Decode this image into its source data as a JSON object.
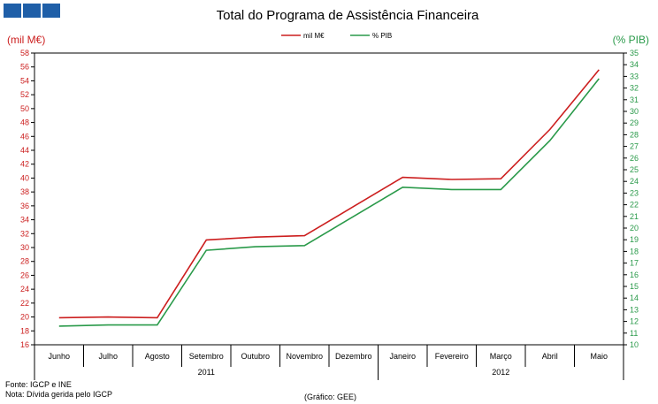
{
  "chart_data": {
    "type": "line",
    "title": "Total do Programa de Assistência Financeira",
    "ylabel_left": "(mil M€)",
    "ylabel_right": "(% PIB)",
    "ylim_left": [
      16,
      58
    ],
    "ylim_right": [
      10,
      35
    ],
    "legend": {
      "position": "top-center"
    },
    "categories": [
      "Junho",
      "Julho",
      "Agosto",
      "Setembro",
      "Outubro",
      "Novembro",
      "Dezembro",
      "Janeiro",
      "Fevereiro",
      "Março",
      "Abril",
      "Maio"
    ],
    "years": [
      {
        "label": "2011",
        "from": 0,
        "to": 6
      },
      {
        "label": "2012",
        "from": 7,
        "to": 11
      }
    ],
    "series": [
      {
        "name": "mil M€",
        "axis": "left",
        "color": "#cc1f1f",
        "values": [
          19.9,
          20.0,
          19.9,
          31.1,
          31.5,
          31.7,
          35.9,
          40.1,
          39.8,
          39.9,
          47.0,
          55.6
        ]
      },
      {
        "name": "% PIB",
        "axis": "right",
        "color": "#2a9a4a",
        "values": [
          11.6,
          11.7,
          11.7,
          18.1,
          18.4,
          18.5,
          21.0,
          23.5,
          23.3,
          23.3,
          27.5,
          32.8
        ]
      }
    ]
  },
  "footer": {
    "source": "Fonte: IGCP e INE",
    "note": "Nota: Dívida gerida pelo IGCP",
    "credit": "(Gráfico: GEE)"
  },
  "colors": {
    "left_axis": "#cc1f1f",
    "right_axis": "#2a9a4a",
    "logo": "#1f5fa8"
  }
}
